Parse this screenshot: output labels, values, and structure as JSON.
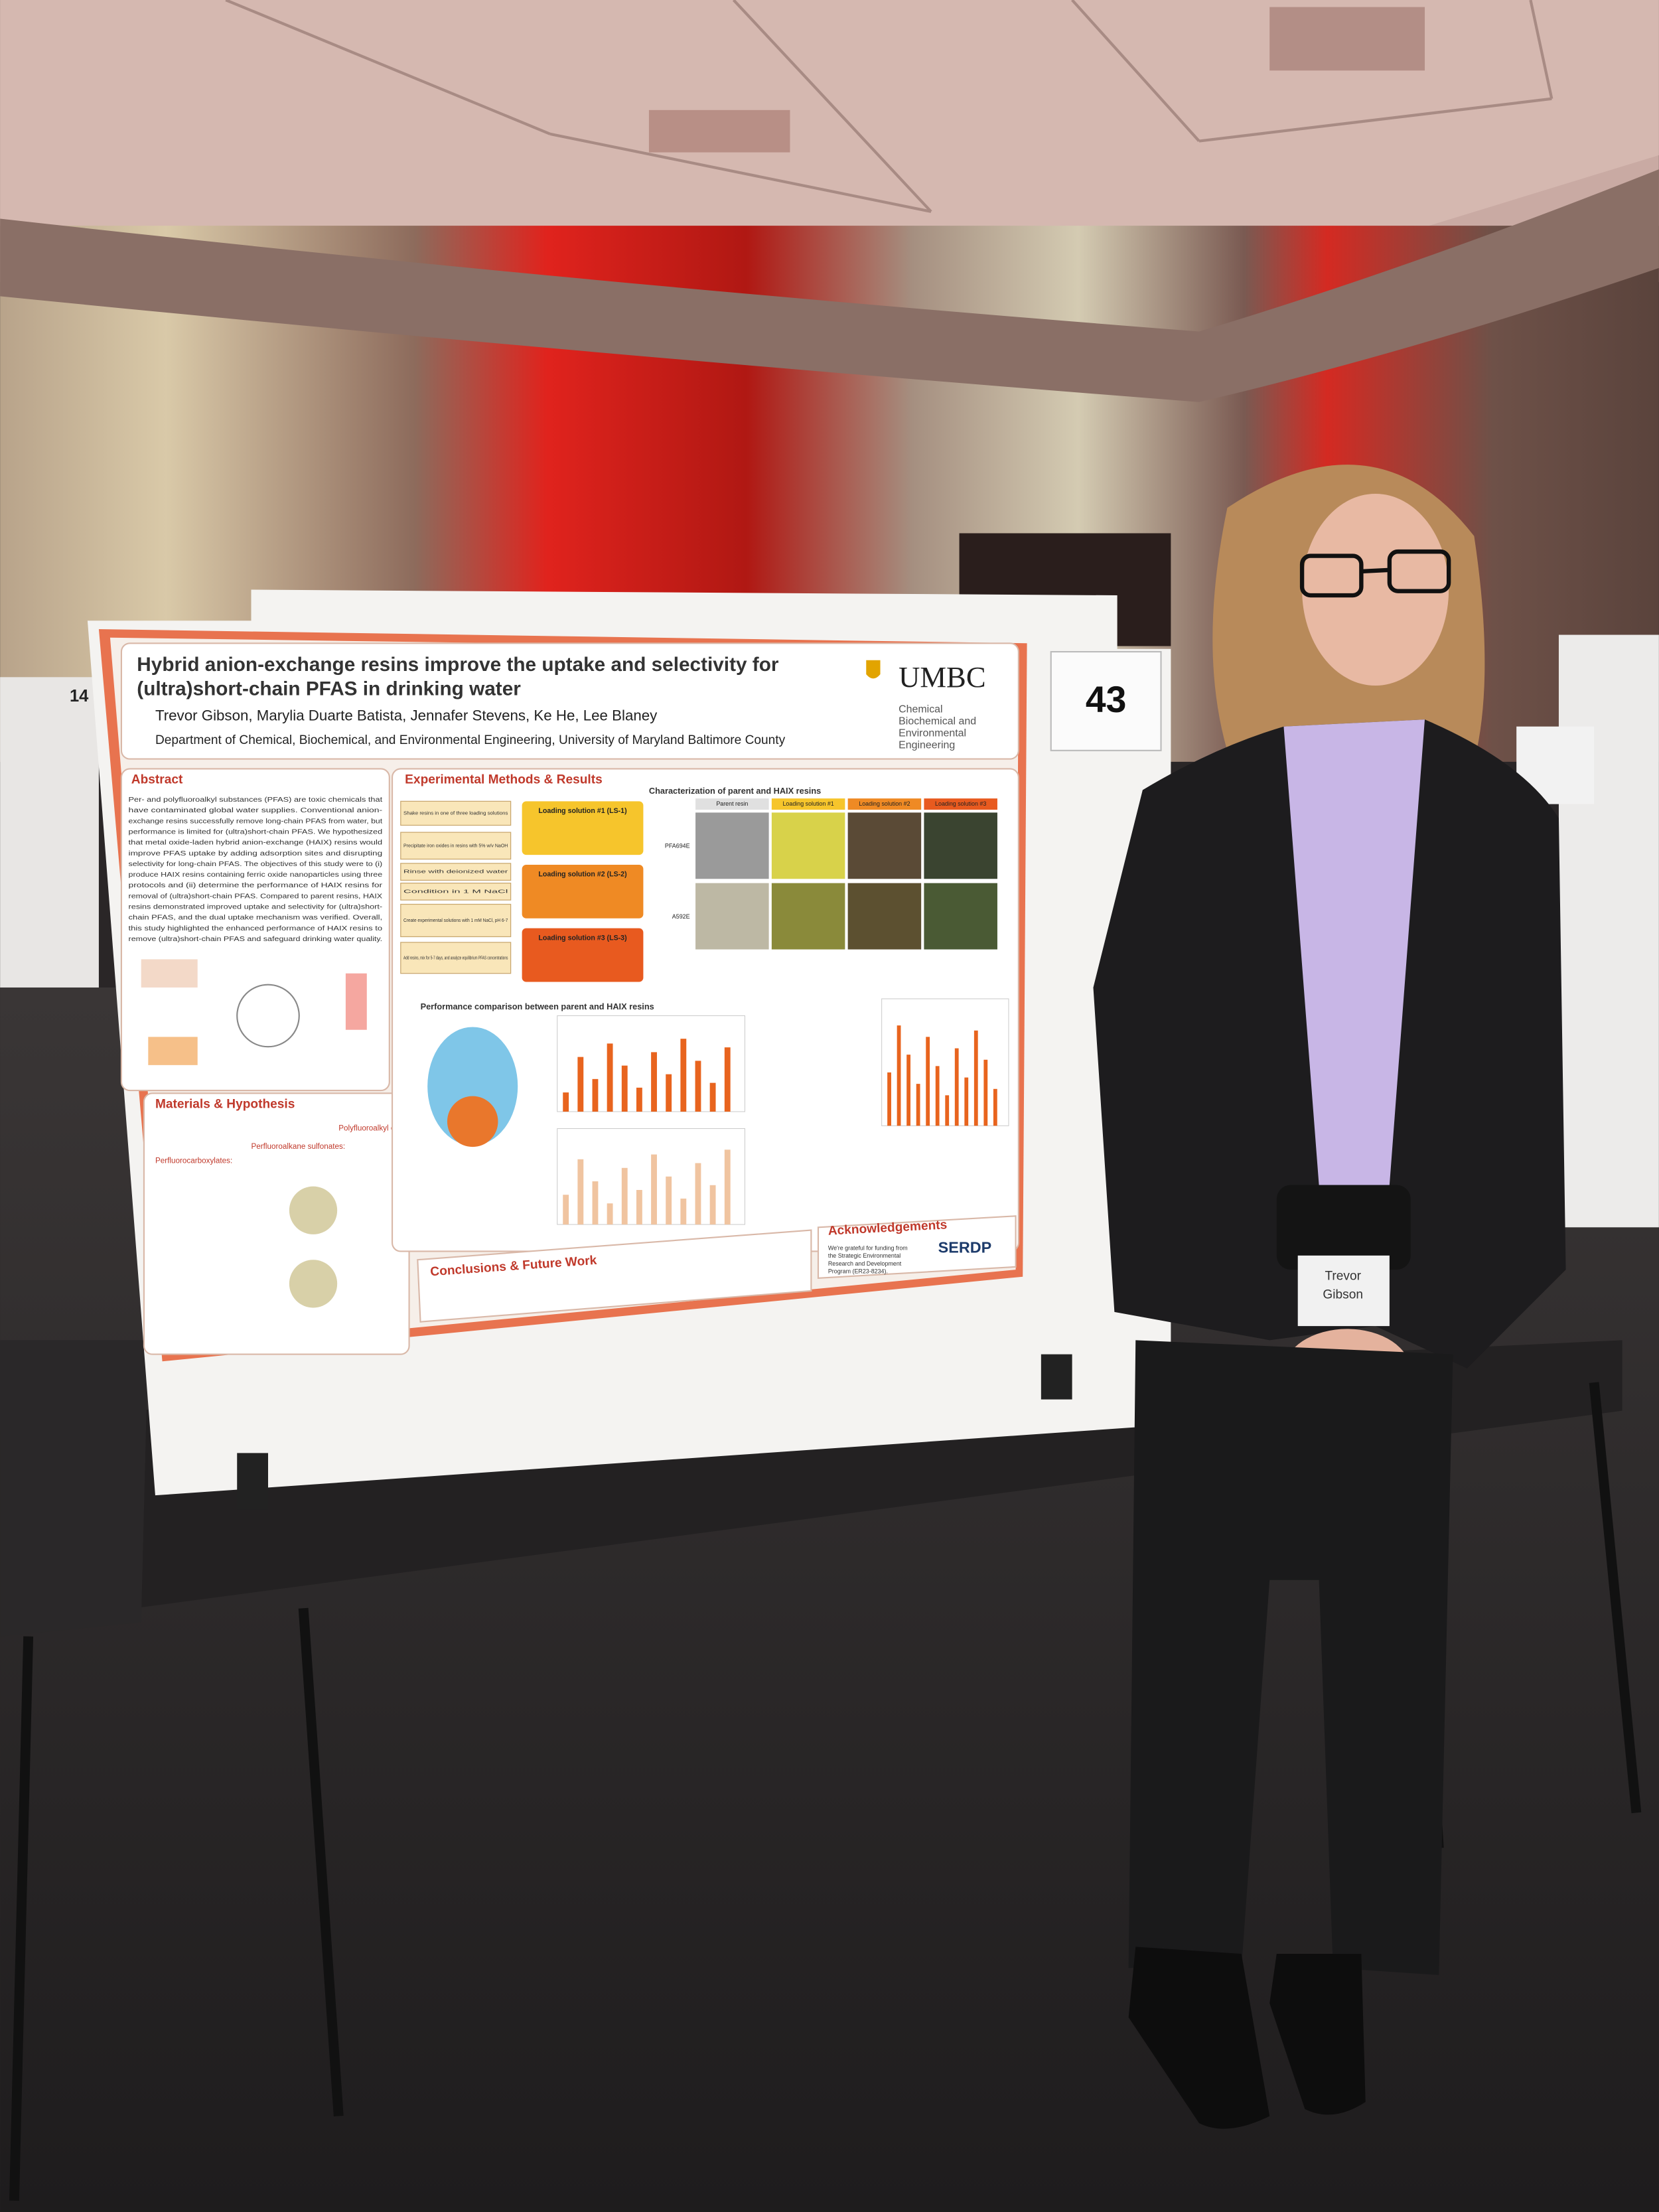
{
  "poster": {
    "title": [
      "Hybrid anion-exchange resins improve the uptake and selectivity for",
      "(ultra)short-chain PFAS in drinking water"
    ],
    "authors": "Trevor Gibson, Marylia Duarte Batista, Jennafer Stevens, Ke He, Lee Blaney",
    "affiliation": "Department of Chemical, Biochemical, and Environmental Engineering, University of Maryland Baltimore County",
    "logo": {
      "name": "UMBC",
      "department": [
        "Chemical",
        "Biochemical and",
        "Environmental",
        "Engineering"
      ]
    },
    "abstract": {
      "heading": "Abstract",
      "lines": [
        "Per- and polyfluoroalkyl substances (PFAS) are toxic chemicals that",
        "have contaminated global water supplies. Conventional anion-",
        "exchange resins successfully remove long-chain PFAS from water, but",
        "performance is limited for (ultra)short-chain PFAS. We hypothesized",
        "that metal oxide-laden hybrid anion-exchange (HAIX) resins would",
        "improve PFAS uptake by adding adsorption sites and disrupting",
        "selectivity for long-chain PFAS. The objectives of this study were to (i)",
        "produce HAIX resins containing ferric oxide nanoparticles using three",
        "protocols and (ii) determine the performance of HAIX resins for",
        "removal of (ultra)short-chain PFAS. Compared to parent resins, HAIX",
        "resins demonstrated improved uptake and selectivity for (ultra)short-",
        "chain PFAS, and the dual uptake mechanism was verified. Overall,",
        "this study highlighted the enhanced performance of HAIX resins to",
        "remove (ultra)short-chain PFAS and safeguard drinking water quality."
      ]
    },
    "methods": {
      "heading": "Experimental Methods & Results",
      "steps": [
        "Shake resins in one of three loading solutions",
        "Precipitate iron oxides in resins with 5% w/v NaOH",
        "Rinse with deionized water",
        "Condition in 1 M NaCl",
        "Create experimental solutions with 1 mM NaCl, pH 6-7",
        "Add resins, mix for 5-7 days, and analyze equilibrium PFAS concentrations"
      ],
      "loading": [
        "Loading solution #1 (LS-1)",
        "Loading solution #2 (LS-2)",
        "Loading solution #3 (LS-3)"
      ],
      "characterization": "Characterization of parent and HAIX resins",
      "columns": [
        "Parent resin",
        "Loading solution #1",
        "Loading solution #2",
        "Loading solution #3"
      ],
      "rows": [
        "PFA694E",
        "A592E"
      ],
      "performance": "Performance comparison between parent and HAIX resins"
    },
    "materials": {
      "heading": "Materials & Hypothesis",
      "items": [
        "Perfluorocarboxylates:",
        "Perfluoroalkane sulfonates:",
        "Polyfluoroalkyl carboxylates:"
      ]
    },
    "conclusions": {
      "heading": "Conclusions & Future Work"
    },
    "acknowledgements": {
      "heading": "Acknowledgements",
      "lines": [
        "We're grateful for funding from",
        "the Strategic Environmental",
        "Research and Development",
        "Program (ER23-8234)."
      ]
    },
    "sponsor": "SERDP"
  },
  "placards": [
    "43",
    "14"
  ],
  "badge": [
    "Trevor",
    "Gibson"
  ]
}
